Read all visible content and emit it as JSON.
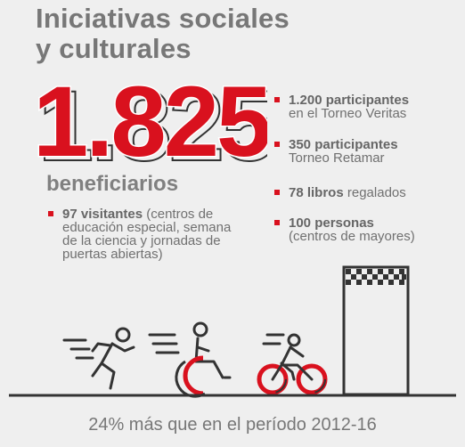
{
  "title": {
    "line1": "Iniciativas sociales",
    "line2": "y culturales"
  },
  "headline": {
    "number": "1.825",
    "label": "beneficiarios"
  },
  "left_bullets": [
    {
      "bold": "97 visitantes",
      "text": " (centros de educación especial, semana de la ciencia y jornadas de puertas abiertas)"
    }
  ],
  "right_bullets": [
    {
      "bold": "1.200 participantes",
      "text": "en el Torneo Veritas"
    },
    {
      "bold": "350 participantes",
      "text": "Torneo Retamar"
    },
    {
      "bold": "78 libros",
      "text": " regalados"
    },
    {
      "bold": "100 personas",
      "text": "(centros de mayores)"
    }
  ],
  "icons": [
    "running-person-icon",
    "wheelchair-icon",
    "cyclist-icon",
    "finish-flag-icon"
  ],
  "colors": {
    "accent": "#d9111e",
    "text": "#707070",
    "background": "#efefef"
  },
  "footer": "24% más que en el período 2012-16"
}
